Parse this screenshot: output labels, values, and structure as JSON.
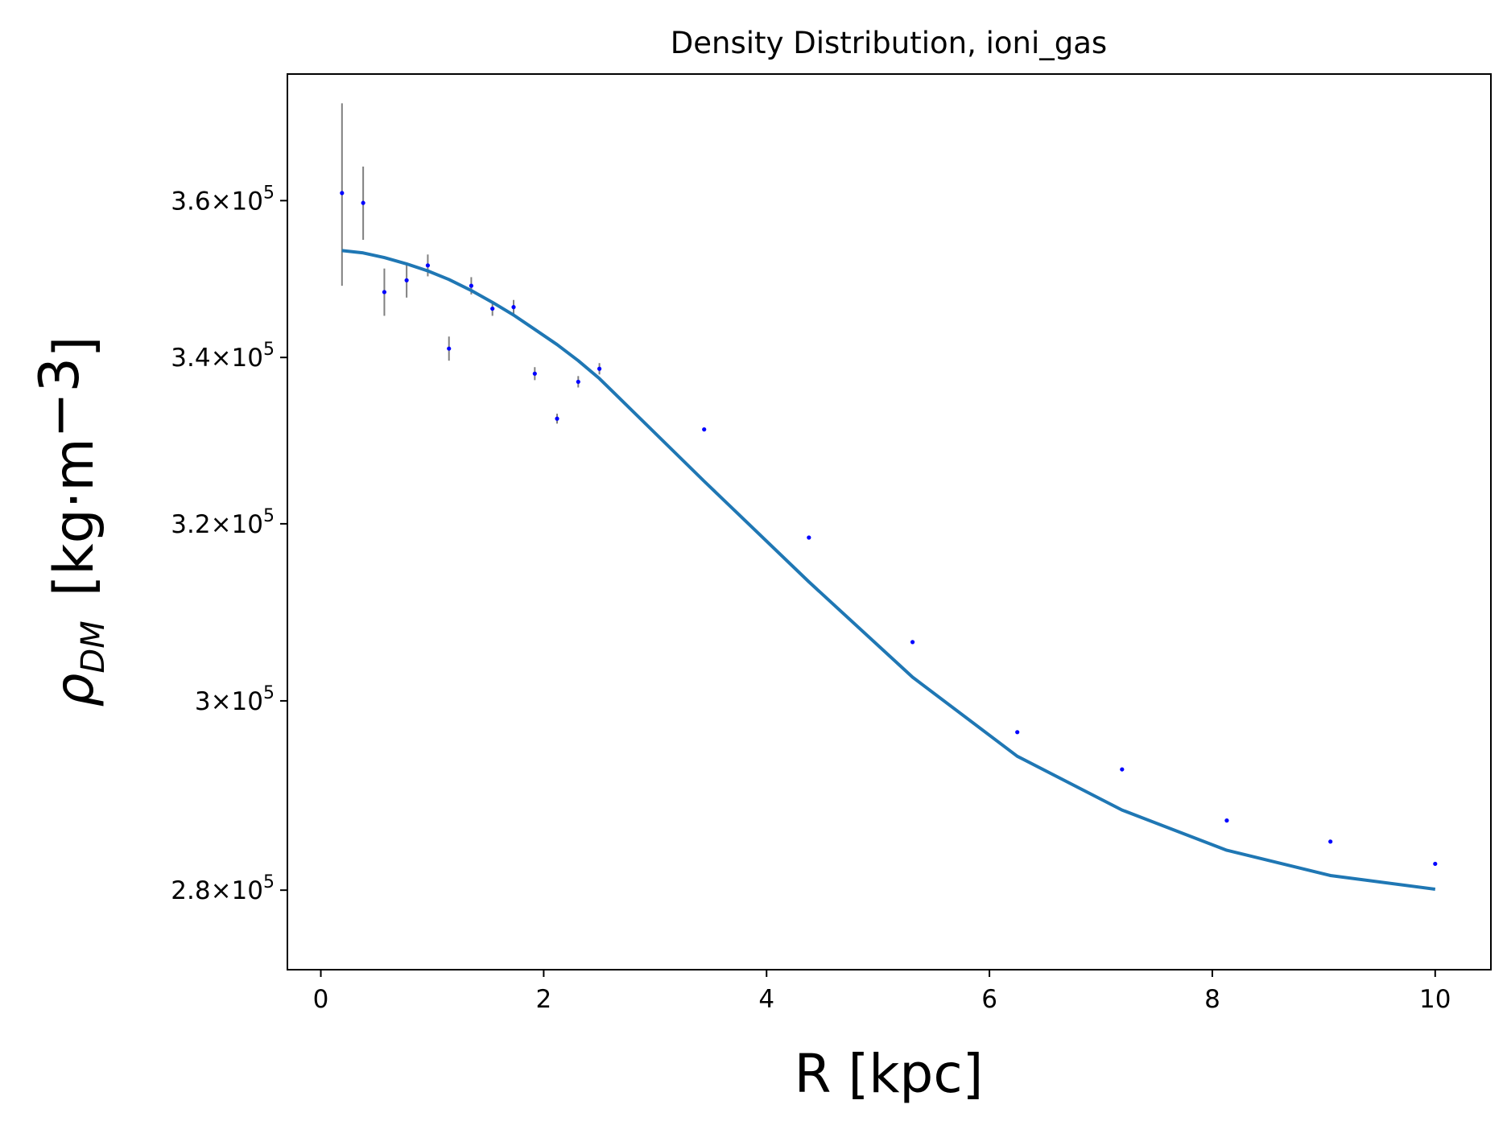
{
  "chart_data": {
    "type": "scatter",
    "title": "Density Distribution, ioni_gas",
    "xlabel": "R [kpc]",
    "ylabel": {
      "symbol": "ρ",
      "subscript": "DM",
      "unit": "[kg·m",
      "unit_sup": "−3",
      "unit_close": "]"
    },
    "x_scale": "linear",
    "y_scale": "log",
    "xlim": [
      -0.3,
      10.5
    ],
    "ylim": [
      272000,
      377000
    ],
    "x_ticks": [
      {
        "value": 0,
        "label": "0"
      },
      {
        "value": 2,
        "label": "2"
      },
      {
        "value": 4,
        "label": "4"
      },
      {
        "value": 6,
        "label": "6"
      },
      {
        "value": 8,
        "label": "8"
      },
      {
        "value": 10,
        "label": "10"
      }
    ],
    "y_ticks": [
      {
        "value": 280000,
        "mantissa": "2.8",
        "times": "×10",
        "exp": "5"
      },
      {
        "value": 300000,
        "mantissa": "3",
        "times": "×10",
        "exp": "5"
      },
      {
        "value": 320000,
        "mantissa": "3.2",
        "times": "×10",
        "exp": "5"
      },
      {
        "value": 340000,
        "mantissa": "3.4",
        "times": "×10",
        "exp": "5"
      },
      {
        "value": 360000,
        "mantissa": "3.6",
        "times": "×10",
        "exp": "5"
      }
    ],
    "points": {
      "color": "#0000ff",
      "errorbar_color": "#808080",
      "x": [
        0.19,
        0.38,
        0.57,
        0.77,
        0.96,
        1.35,
        1.54,
        1.73,
        1.15,
        1.92,
        2.12,
        2.31,
        2.5,
        3.44,
        4.38,
        5.31,
        6.25,
        7.19,
        8.13,
        9.06,
        10.0
      ],
      "y": [
        361000,
        359700,
        348200,
        349700,
        351600,
        349000,
        346100,
        346300,
        341100,
        338000,
        332500,
        337000,
        338600,
        331200,
        318400,
        306500,
        296600,
        292600,
        287200,
        285000,
        282700
      ],
      "err": [
        12000,
        4800,
        3000,
        2200,
        1400,
        1100,
        900,
        900,
        1500,
        800,
        600,
        700,
        700,
        0,
        0,
        0,
        0,
        0,
        0,
        0,
        0
      ]
    },
    "model": {
      "color": "#1f77b4",
      "x": [
        0.19,
        0.38,
        0.57,
        0.77,
        0.96,
        1.15,
        1.35,
        1.54,
        1.73,
        1.92,
        2.12,
        2.31,
        2.5,
        3.44,
        4.38,
        5.31,
        6.25,
        7.19,
        8.13,
        9.06,
        10.0
      ],
      "y": [
        353500,
        353200,
        352600,
        351800,
        350900,
        349800,
        348400,
        346900,
        345300,
        343500,
        341600,
        339600,
        337400,
        325000,
        313300,
        302600,
        294000,
        288300,
        284100,
        281500,
        280100
      ]
    },
    "grid": false,
    "legend": "none"
  }
}
